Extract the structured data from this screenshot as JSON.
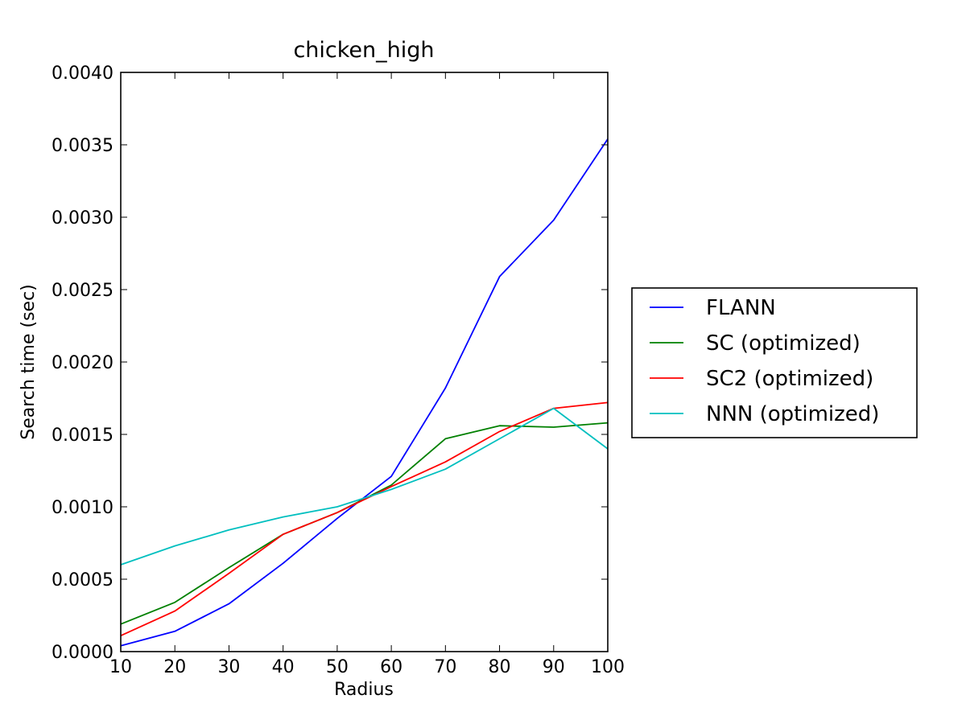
{
  "chart_data": {
    "type": "line",
    "title": "chicken_high",
    "xlabel": "Radius",
    "ylabel": "Search time (sec)",
    "x": [
      10,
      20,
      30,
      40,
      50,
      60,
      70,
      80,
      90,
      100
    ],
    "xlim": [
      10,
      100
    ],
    "ylim": [
      0,
      0.004
    ],
    "xticks": [
      "10",
      "20",
      "30",
      "40",
      "50",
      "60",
      "70",
      "80",
      "90",
      "100"
    ],
    "yticks": [
      "0.0000",
      "0.0005",
      "0.0010",
      "0.0015",
      "0.0020",
      "0.0025",
      "0.0030",
      "0.0035",
      "0.0040"
    ],
    "grid": false,
    "legend_position": "right",
    "series": [
      {
        "name": "FLANN",
        "color": "#0000ff",
        "values": [
          4e-05,
          0.00014,
          0.00033,
          0.00061,
          0.00092,
          0.00121,
          0.00182,
          0.00259,
          0.00298,
          0.00354
        ]
      },
      {
        "name": "SC (optimized)",
        "color": "#008000",
        "values": [
          0.00019,
          0.00034,
          0.00058,
          0.00081,
          0.00096,
          0.00115,
          0.00147,
          0.00156,
          0.00155,
          0.00158
        ]
      },
      {
        "name": "SC2 (optimized)",
        "color": "#ff0000",
        "values": [
          0.00011,
          0.00028,
          0.00054,
          0.00081,
          0.00096,
          0.00114,
          0.00131,
          0.00152,
          0.00168,
          0.00172
        ]
      },
      {
        "name": "NNN (optimized)",
        "color": "#00bfbf",
        "values": [
          0.0006,
          0.00073,
          0.00084,
          0.00093,
          0.001,
          0.00112,
          0.00126,
          0.00147,
          0.00168,
          0.0014
        ]
      }
    ]
  }
}
